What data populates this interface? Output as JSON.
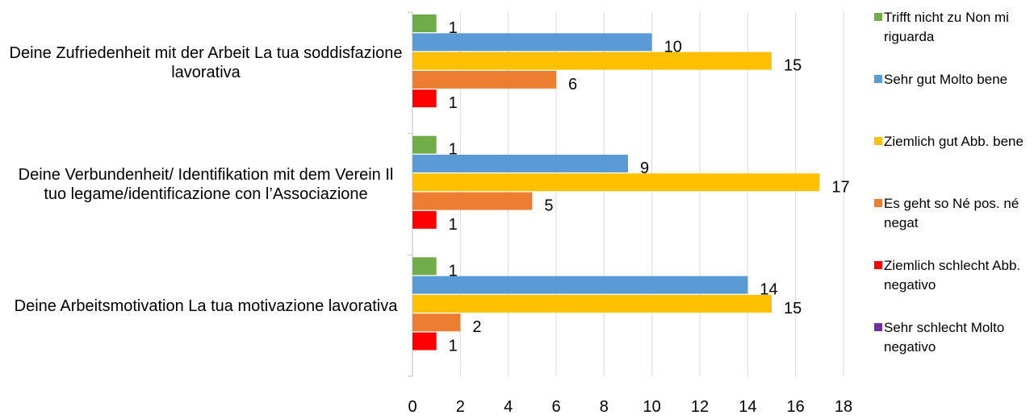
{
  "chart_data": {
    "type": "bar",
    "orientation": "horizontal",
    "categories": [
      "Deine Zufriedenheit mit der Arbeit La tua soddisfazione lavorativa",
      "Deine Verbundenheit/ Identifikation mit dem Verein Il tuo legame/identificazione con l’Associazione",
      "Deine Arbeitsmotivation La tua motivazione lavorativa"
    ],
    "series": [
      {
        "name": "Trifft nicht zu Non mi riguarda",
        "color": "#70ad47",
        "values": [
          1,
          1,
          1
        ]
      },
      {
        "name": "Sehr gut  Molto bene",
        "color": "#5b9bd5",
        "values": [
          10,
          9,
          14
        ]
      },
      {
        "name": "Ziemlich gut Abb. bene",
        "color": "#ffc000",
        "values": [
          15,
          17,
          15
        ]
      },
      {
        "name": "Es geht so Né pos. né negat",
        "color": "#ed7d31",
        "values": [
          6,
          5,
          2
        ]
      },
      {
        "name": "Ziemlich schlecht Abb. negativo",
        "color": "#ff0000",
        "values": [
          1,
          1,
          1
        ]
      },
      {
        "name": "Sehr schlecht Molto negativo",
        "color": "#7030a0",
        "values": [
          null,
          null,
          null
        ]
      }
    ],
    "xlim": [
      0,
      18
    ],
    "xticks": [
      0,
      2,
      4,
      6,
      8,
      10,
      12,
      14,
      16,
      18
    ],
    "grid": true,
    "legend": "right"
  }
}
